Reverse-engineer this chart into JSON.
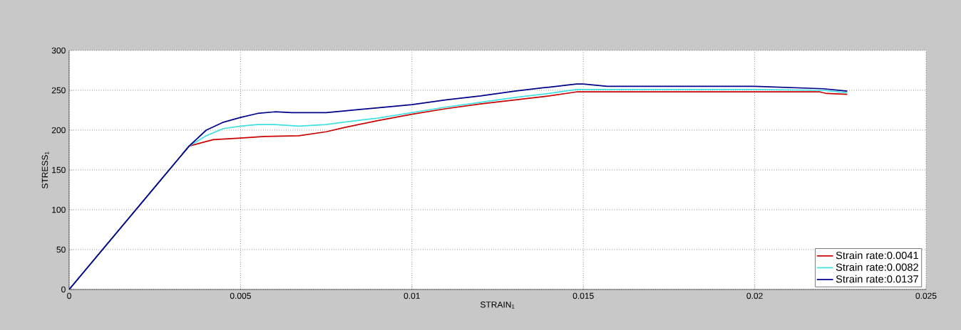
{
  "chart_data": {
    "type": "line",
    "xlabel": "STRAIN$_{1}$",
    "ylabel": "STRESS$_{1}$",
    "xlim": [
      0,
      0.025
    ],
    "ylim": [
      0,
      300
    ],
    "xticks": [
      0,
      0.005,
      0.01,
      0.015,
      0.02,
      0.025
    ],
    "yticks": [
      0,
      50,
      100,
      150,
      200,
      250,
      300
    ],
    "grid": true,
    "legend": "bottom right",
    "line_style": "solid",
    "marker": "none",
    "series": [
      {
        "name": "Strain rate:0.0041",
        "color": "#cc0000",
        "x": [
          0,
          0.0035,
          0.0042,
          0.005,
          0.0057,
          0.0067,
          0.0075,
          0.008,
          0.009,
          0.01,
          0.011,
          0.012,
          0.013,
          0.014,
          0.0148,
          0.02,
          0.0219,
          0.0221,
          0.0227
        ],
        "values": [
          0,
          180,
          188,
          190,
          192,
          193,
          198,
          203,
          212,
          220,
          227,
          233,
          238,
          243,
          248,
          248,
          248,
          246,
          245
        ]
      },
      {
        "name": "Strain rate:0.0082",
        "color": "#40e0e0",
        "x": [
          0,
          0.0035,
          0.004,
          0.0045,
          0.005,
          0.0055,
          0.006,
          0.0067,
          0.0075,
          0.008,
          0.009,
          0.01,
          0.011,
          0.012,
          0.013,
          0.014,
          0.0148,
          0.015,
          0.02,
          0.022,
          0.0227
        ],
        "values": [
          0,
          180,
          193,
          202,
          205,
          207,
          207,
          205,
          207,
          210,
          215,
          222,
          229,
          235,
          241,
          246,
          251,
          251,
          251,
          250,
          247
        ]
      },
      {
        "name": "Strain rate:0.0137",
        "color": "#00008b",
        "x": [
          0,
          0.0035,
          0.004,
          0.0045,
          0.005,
          0.0055,
          0.006,
          0.0065,
          0.0075,
          0.008,
          0.009,
          0.01,
          0.011,
          0.012,
          0.013,
          0.014,
          0.0148,
          0.015,
          0.0157,
          0.02,
          0.022,
          0.0227
        ],
        "values": [
          0,
          180,
          200,
          210,
          216,
          221,
          223,
          222,
          222,
          224,
          228,
          232,
          238,
          243,
          249,
          254,
          258,
          258,
          255,
          255,
          252,
          249
        ]
      }
    ]
  }
}
